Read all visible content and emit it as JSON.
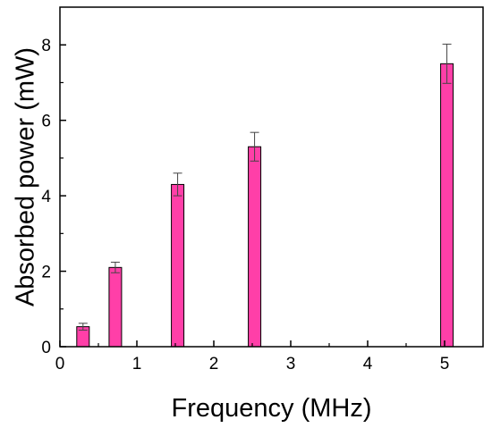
{
  "chart_data": {
    "type": "bar",
    "title": "",
    "xlabel": "Frequency (MHz)",
    "ylabel": "Absorbed power (mW)",
    "xlim": [
      0,
      5.5
    ],
    "ylim": [
      0,
      9
    ],
    "x_ticks": [
      0,
      1,
      2,
      3,
      4,
      5
    ],
    "x_tick_labels": [
      "0",
      "1",
      "2",
      "3",
      "4",
      "5"
    ],
    "y_ticks": [
      0,
      2,
      4,
      6,
      8
    ],
    "y_tick_labels": [
      "0",
      "2",
      "4",
      "6",
      "8"
    ],
    "x": [
      0.3,
      0.72,
      1.53,
      2.53,
      5.03
    ],
    "values": [
      0.53,
      2.1,
      4.3,
      5.3,
      7.5
    ],
    "errors": [
      0.09,
      0.14,
      0.3,
      0.38,
      0.52
    ],
    "bar_color": "#ff3fa8",
    "error_bar_color": "#444444",
    "grid": false,
    "legend": "none"
  }
}
